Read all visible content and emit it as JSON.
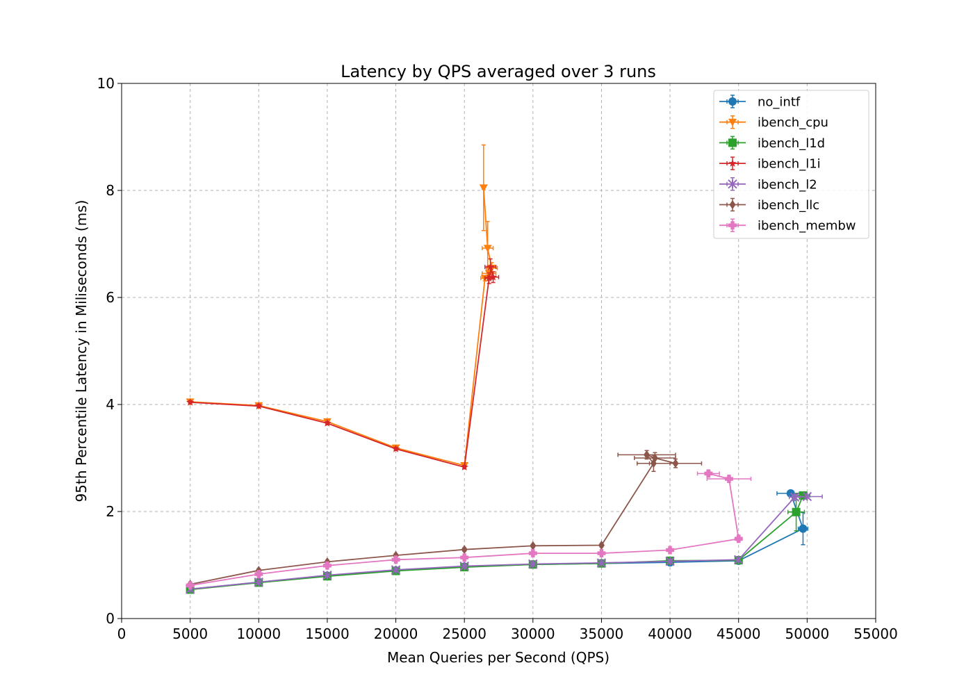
{
  "chart_data": {
    "type": "line",
    "title": "Latency by QPS averaged over 3 runs",
    "xlabel": "Mean Queries per Second (QPS)",
    "ylabel": "95th Percentile Latency in Miliseconds (ms)",
    "xlim": [
      0,
      55000
    ],
    "ylim": [
      0,
      10
    ],
    "xticks": [
      "0",
      "5000",
      "10000",
      "15000",
      "20000",
      "25000",
      "30000",
      "35000",
      "40000",
      "45000",
      "50000",
      "55000"
    ],
    "yticks": [
      "0",
      "2",
      "4",
      "6",
      "8",
      "10"
    ],
    "grid": true,
    "legend_position": "top-right",
    "series": [
      {
        "name": "no_intf",
        "color": "#1f77b4",
        "marker": "circle",
        "points": [
          {
            "x": 5000,
            "y": 0.55,
            "xerr": 50,
            "yerr": 0.03
          },
          {
            "x": 10000,
            "y": 0.68,
            "xerr": 50,
            "yerr": 0.03
          },
          {
            "x": 15000,
            "y": 0.8,
            "xerr": 50,
            "yerr": 0.03
          },
          {
            "x": 20000,
            "y": 0.9,
            "xerr": 50,
            "yerr": 0.03
          },
          {
            "x": 25000,
            "y": 0.97,
            "xerr": 50,
            "yerr": 0.03
          },
          {
            "x": 30000,
            "y": 1.01,
            "xerr": 50,
            "yerr": 0.03
          },
          {
            "x": 35000,
            "y": 1.03,
            "xerr": 50,
            "yerr": 0.03
          },
          {
            "x": 40000,
            "y": 1.05,
            "xerr": 50,
            "yerr": 0.03
          },
          {
            "x": 45000,
            "y": 1.08,
            "xerr": 50,
            "yerr": 0.03
          },
          {
            "x": 49700,
            "y": 1.68,
            "xerr": 350,
            "yerr": 0.3
          },
          {
            "x": 48800,
            "y": 2.34,
            "xerr": 1000,
            "yerr": 0.03
          }
        ]
      },
      {
        "name": "ibench_cpu",
        "color": "#ff7f0e",
        "marker": "triangle-down",
        "points": [
          {
            "x": 5000,
            "y": 4.05,
            "xerr": 50,
            "yerr": 0.03
          },
          {
            "x": 10000,
            "y": 3.98,
            "xerr": 50,
            "yerr": 0.03
          },
          {
            "x": 15000,
            "y": 3.68,
            "xerr": 50,
            "yerr": 0.03
          },
          {
            "x": 20000,
            "y": 3.19,
            "xerr": 50,
            "yerr": 0.03
          },
          {
            "x": 25000,
            "y": 2.86,
            "xerr": 50,
            "yerr": 0.03
          },
          {
            "x": 26500,
            "y": 6.36,
            "xerr": 300,
            "yerr": 0.05
          },
          {
            "x": 26800,
            "y": 6.45,
            "xerr": 500,
            "yerr": 0.1
          },
          {
            "x": 27000,
            "y": 6.55,
            "xerr": 400,
            "yerr": 0.1
          },
          {
            "x": 26700,
            "y": 6.92,
            "xerr": 400,
            "yerr": 0.5
          },
          {
            "x": 26400,
            "y": 8.05,
            "xerr": 100,
            "yerr": 0.8
          }
        ]
      },
      {
        "name": "ibench_l1d",
        "color": "#2ca02c",
        "marker": "square",
        "points": [
          {
            "x": 5000,
            "y": 0.54,
            "xerr": 50,
            "yerr": 0.03
          },
          {
            "x": 10000,
            "y": 0.67,
            "xerr": 50,
            "yerr": 0.03
          },
          {
            "x": 15000,
            "y": 0.79,
            "xerr": 50,
            "yerr": 0.03
          },
          {
            "x": 20000,
            "y": 0.89,
            "xerr": 50,
            "yerr": 0.03
          },
          {
            "x": 25000,
            "y": 0.96,
            "xerr": 50,
            "yerr": 0.03
          },
          {
            "x": 30000,
            "y": 1.01,
            "xerr": 50,
            "yerr": 0.03
          },
          {
            "x": 35000,
            "y": 1.03,
            "xerr": 50,
            "yerr": 0.03
          },
          {
            "x": 40000,
            "y": 1.08,
            "xerr": 50,
            "yerr": 0.03
          },
          {
            "x": 45000,
            "y": 1.09,
            "xerr": 50,
            "yerr": 0.03
          },
          {
            "x": 49200,
            "y": 1.99,
            "xerr": 600,
            "yerr": 0.35
          },
          {
            "x": 49700,
            "y": 2.3,
            "xerr": 500,
            "yerr": 0.03
          }
        ]
      },
      {
        "name": "ibench_l1i",
        "color": "#d62728",
        "marker": "star",
        "points": [
          {
            "x": 5000,
            "y": 4.04,
            "xerr": 50,
            "yerr": 0.03
          },
          {
            "x": 10000,
            "y": 3.97,
            "xerr": 50,
            "yerr": 0.03
          },
          {
            "x": 15000,
            "y": 3.65,
            "xerr": 50,
            "yerr": 0.03
          },
          {
            "x": 20000,
            "y": 3.17,
            "xerr": 50,
            "yerr": 0.03
          },
          {
            "x": 25000,
            "y": 2.83,
            "xerr": 50,
            "yerr": 0.03
          },
          {
            "x": 26800,
            "y": 6.36,
            "xerr": 300,
            "yerr": 0.1
          },
          {
            "x": 27100,
            "y": 6.38,
            "xerr": 400,
            "yerr": 0.1
          },
          {
            "x": 26900,
            "y": 6.57,
            "xerr": 400,
            "yerr": 0.15
          }
        ]
      },
      {
        "name": "ibench_l2",
        "color": "#9467bd",
        "marker": "x",
        "points": [
          {
            "x": 5000,
            "y": 0.55,
            "xerr": 50,
            "yerr": 0.03
          },
          {
            "x": 10000,
            "y": 0.68,
            "xerr": 50,
            "yerr": 0.03
          },
          {
            "x": 15000,
            "y": 0.81,
            "xerr": 50,
            "yerr": 0.03
          },
          {
            "x": 20000,
            "y": 0.91,
            "xerr": 50,
            "yerr": 0.03
          },
          {
            "x": 25000,
            "y": 0.98,
            "xerr": 50,
            "yerr": 0.03
          },
          {
            "x": 30000,
            "y": 1.02,
            "xerr": 50,
            "yerr": 0.03
          },
          {
            "x": 35000,
            "y": 1.04,
            "xerr": 50,
            "yerr": 0.03
          },
          {
            "x": 40000,
            "y": 1.07,
            "xerr": 50,
            "yerr": 0.03
          },
          {
            "x": 45000,
            "y": 1.1,
            "xerr": 50,
            "yerr": 0.03
          },
          {
            "x": 49100,
            "y": 2.27,
            "xerr": 400,
            "yerr": 0.05
          },
          {
            "x": 50000,
            "y": 2.28,
            "xerr": 1100,
            "yerr": 0.03
          }
        ]
      },
      {
        "name": "ibench_llc",
        "color": "#8c564b",
        "marker": "diamond",
        "points": [
          {
            "x": 5000,
            "y": 0.64,
            "xerr": 50,
            "yerr": 0.03
          },
          {
            "x": 10000,
            "y": 0.9,
            "xerr": 50,
            "yerr": 0.03
          },
          {
            "x": 15000,
            "y": 1.06,
            "xerr": 50,
            "yerr": 0.03
          },
          {
            "x": 20000,
            "y": 1.18,
            "xerr": 50,
            "yerr": 0.03
          },
          {
            "x": 25000,
            "y": 1.29,
            "xerr": 50,
            "yerr": 0.03
          },
          {
            "x": 30000,
            "y": 1.36,
            "xerr": 50,
            "yerr": 0.03
          },
          {
            "x": 35000,
            "y": 1.37,
            "xerr": 50,
            "yerr": 0.03
          },
          {
            "x": 38800,
            "y": 2.9,
            "xerr": 1200,
            "yerr": 0.15
          },
          {
            "x": 38300,
            "y": 3.06,
            "xerr": 2100,
            "yerr": 0.08
          },
          {
            "x": 38900,
            "y": 3.0,
            "xerr": 1500,
            "yerr": 0.1
          },
          {
            "x": 40400,
            "y": 2.9,
            "xerr": 1900,
            "yerr": 0.08
          }
        ]
      },
      {
        "name": "ibench_membw",
        "color": "#e377c2",
        "marker": "plus",
        "points": [
          {
            "x": 5000,
            "y": 0.62,
            "xerr": 50,
            "yerr": 0.03
          },
          {
            "x": 10000,
            "y": 0.83,
            "xerr": 50,
            "yerr": 0.03
          },
          {
            "x": 15000,
            "y": 0.99,
            "xerr": 50,
            "yerr": 0.03
          },
          {
            "x": 20000,
            "y": 1.1,
            "xerr": 50,
            "yerr": 0.03
          },
          {
            "x": 25000,
            "y": 1.14,
            "xerr": 50,
            "yerr": 0.03
          },
          {
            "x": 30000,
            "y": 1.22,
            "xerr": 50,
            "yerr": 0.03
          },
          {
            "x": 35000,
            "y": 1.22,
            "xerr": 50,
            "yerr": 0.03
          },
          {
            "x": 40000,
            "y": 1.28,
            "xerr": 50,
            "yerr": 0.03
          },
          {
            "x": 45000,
            "y": 1.49,
            "xerr": 200,
            "yerr": 0.05
          },
          {
            "x": 44300,
            "y": 2.61,
            "xerr": 1600,
            "yerr": 0.03
          },
          {
            "x": 42800,
            "y": 2.71,
            "xerr": 800,
            "yerr": 0.05
          }
        ]
      }
    ]
  }
}
